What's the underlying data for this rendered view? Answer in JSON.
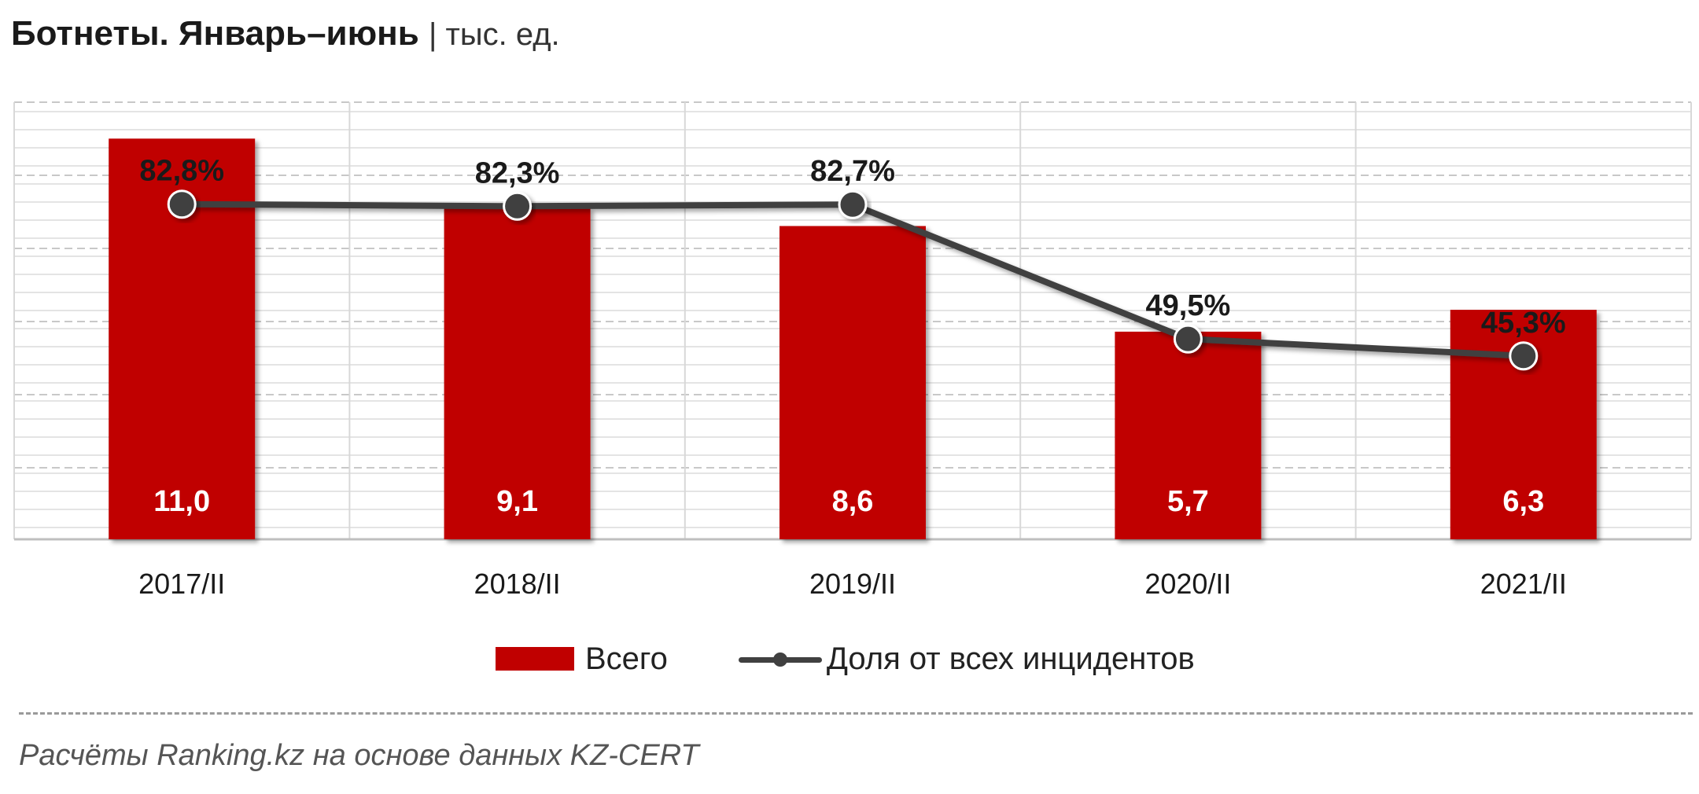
{
  "title": "Ботнеты. Январь–июнь",
  "unit": "| тыс. ед.",
  "legend": {
    "bar_label": "Всего",
    "line_label": "Доля от всех инцидентов"
  },
  "source": "Расчёты Ranking.kz на основе данных  KZ-CERT",
  "colors": {
    "bar": "#c00000",
    "line": "#404040",
    "grid": "#d0d0d0"
  },
  "chart_data": {
    "type": "bar",
    "categories": [
      "2017/II",
      "2018/II",
      "2019/II",
      "2020/II",
      "2021/II"
    ],
    "series": [
      {
        "name": "Всего",
        "type": "bar",
        "values": [
          11.0,
          9.1,
          8.6,
          5.7,
          6.3
        ],
        "labels": [
          "11,0",
          "9,1",
          "8,6",
          "5,7",
          "6,3"
        ]
      },
      {
        "name": "Доля от всех инцидентов",
        "type": "line",
        "values": [
          82.8,
          82.3,
          82.7,
          49.5,
          45.3
        ],
        "labels": [
          "82,8%",
          "82,3%",
          "82,7%",
          "49,5%",
          "45,3%"
        ]
      }
    ],
    "ylim_bar": [
      0,
      12
    ],
    "ylim_line": [
      0,
      108
    ],
    "grid": true,
    "legend_position": "bottom"
  }
}
